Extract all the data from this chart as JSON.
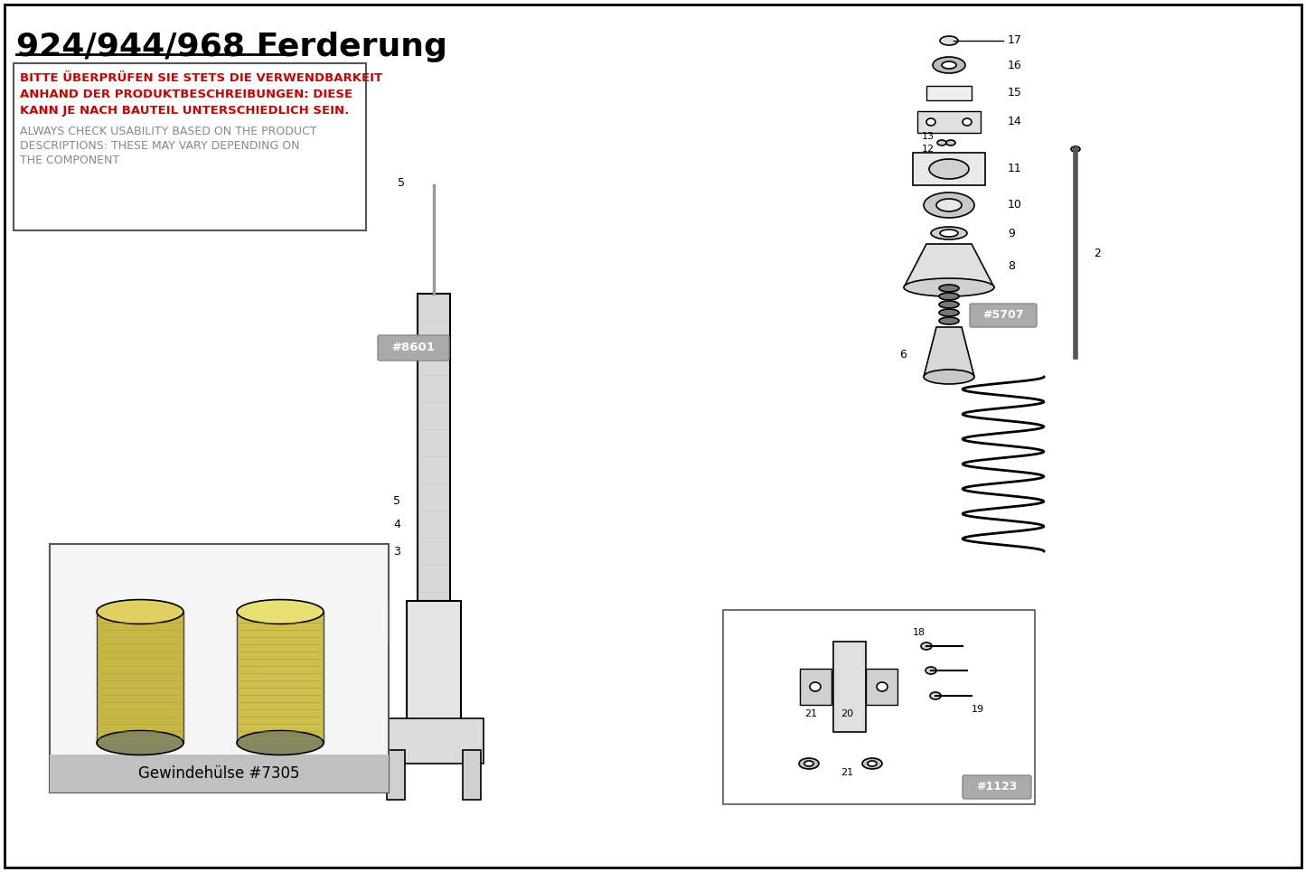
{
  "title": "924/944/968 Ferderung",
  "warning_red_lines": [
    "BITTE ÜBERPRÜFEN SIE STETS DIE VERWENDBARKEIT",
    "ANHAND DER PRODUKTBESCHREIBUNGEN: DIESE",
    "KANN JE NACH BAUTEIL UNTERSCHIEDLICH SEIN."
  ],
  "warning_gray_lines": [
    "ALWAYS CHECK USABILITY BASED ON THE PRODUCT",
    "DESCRIPTIONS: THESE MAY VARY DEPENDING ON",
    "THE COMPONENT"
  ],
  "label_8601": "#8601",
  "label_5707": "#5707",
  "label_1123": "#1123",
  "label_7305": "Gewindehülse #7305",
  "bg_color": "#ffffff",
  "border_color": "#000000",
  "red_color": "#cc0000",
  "gray_color": "#888888",
  "title_fontsize": 26,
  "warning_fontsize": 9.5
}
